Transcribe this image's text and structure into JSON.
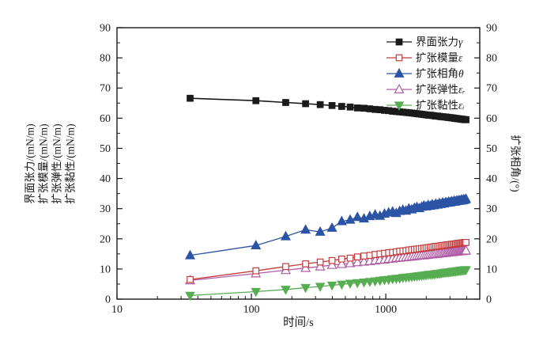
{
  "figure": {
    "background": "#ffffff",
    "x_axis_label": "时间/s",
    "left_axis_label_lines": [
      "界面张力/(mN/m)",
      "扩张模量/(mN/m)",
      "扩张弹性/(mN/m)",
      "扩张黏性/(mN/m)"
    ],
    "right_axis_label": "扩张相角/(°)"
  },
  "chart_data": {
    "type": "line",
    "x_scale": "log",
    "xlabel": "时间/s",
    "xlim": [
      10,
      5000
    ],
    "xticks": [
      10,
      100,
      1000
    ],
    "xtick_labels": [
      "10",
      "100",
      "1000"
    ],
    "ylim_left": [
      0,
      90
    ],
    "ylim_right": [
      0,
      90
    ],
    "yticks": [
      0,
      10,
      20,
      30,
      40,
      50,
      60,
      70,
      80,
      90
    ],
    "ytick_minor_step": 5,
    "ylabel_left_lines": [
      "界面张力/(mN/m)",
      "扩张模量/(mN/m)",
      "扩张弹性/(mN/m)",
      "扩张黏性/(mN/m)"
    ],
    "ylabel_right": "扩张相角/(°)",
    "grid": false,
    "legend_position": "top-right-inside",
    "axis_color": "#1a1a1a",
    "x": [
      35,
      108,
      180,
      253,
      325,
      398,
      470,
      543,
      615,
      688,
      760,
      833,
      905,
      978,
      1050,
      1123,
      1195,
      1268,
      1340,
      1413,
      1485,
      1558,
      1630,
      1703,
      1775,
      1848,
      1920,
      1993,
      2065,
      2138,
      2210,
      2283,
      2355,
      2428,
      2500,
      2573,
      2645,
      2718,
      2790,
      2863,
      2935,
      3008,
      3080,
      3153,
      3225,
      3298,
      3370,
      3443,
      3515,
      3588,
      3660,
      3733,
      3805,
      3878,
      3950
    ],
    "series": [
      {
        "name": "interfacial-tension",
        "label": "界面张力",
        "symbol": "γ",
        "axis": "left",
        "unit": "mN/m",
        "color": "#1a1a1a",
        "marker": "square",
        "fill": "solid",
        "values": [
          66.6,
          65.8,
          65.2,
          64.8,
          64.5,
          64.2,
          63.9,
          63.7,
          63.4,
          63.3,
          63.1,
          62.9,
          62.8,
          62.6,
          62.5,
          62.3,
          62.2,
          62.1,
          62.0,
          61.9,
          61.8,
          61.7,
          61.6,
          61.5,
          61.4,
          61.3,
          61.2,
          61.1,
          61.0,
          61.0,
          60.9,
          60.8,
          60.7,
          60.7,
          60.6,
          60.5,
          60.5,
          60.4,
          60.4,
          60.3,
          60.2,
          60.2,
          60.1,
          60.1,
          60.0,
          59.9,
          59.9,
          59.8,
          59.8,
          59.7,
          59.7,
          59.6,
          59.6,
          59.5,
          59.5
        ]
      },
      {
        "name": "dilational-modulus",
        "label": "扩张模量",
        "symbol": "ε",
        "axis": "left",
        "unit": "mN/m",
        "color": "#c43b3c",
        "marker": "square",
        "fill": "open",
        "values": [
          6.5,
          9.4,
          10.8,
          11.7,
          12.3,
          12.8,
          13.3,
          13.6,
          14.0,
          14.3,
          14.5,
          14.8,
          15.0,
          15.2,
          15.4,
          15.5,
          15.7,
          15.9,
          16.0,
          16.1,
          16.3,
          16.4,
          16.5,
          16.6,
          16.7,
          16.8,
          16.9,
          17.0,
          17.1,
          17.2,
          17.3,
          17.4,
          17.5,
          17.5,
          17.6,
          17.7,
          17.8,
          17.8,
          17.9,
          18.0,
          18.0,
          18.1,
          18.2,
          18.2,
          18.3,
          18.3,
          18.4,
          18.5,
          18.5,
          18.6,
          18.6,
          18.7,
          18.7,
          18.8,
          18.8
        ]
      },
      {
        "name": "phase-angle",
        "label": "扩张相角",
        "symbol": "θ",
        "axis": "right",
        "unit": "°",
        "color": "#2c54a4",
        "marker": "triangle-up",
        "fill": "solid",
        "values": [
          14.5,
          17.8,
          20.8,
          23.0,
          22.3,
          23.6,
          25.8,
          26.3,
          27.2,
          26.7,
          27.5,
          28.0,
          27.6,
          28.3,
          28.7,
          29.0,
          28.5,
          29.2,
          29.6,
          29.3,
          30.0,
          29.7,
          30.2,
          30.5,
          30.1,
          30.6,
          31.0,
          30.7,
          31.2,
          30.9,
          31.4,
          31.1,
          31.6,
          31.3,
          31.8,
          31.5,
          32.0,
          31.7,
          32.1,
          31.9,
          32.3,
          32.0,
          32.4,
          32.2,
          32.6,
          32.3,
          32.7,
          32.5,
          32.8,
          32.6,
          33.0,
          32.7,
          33.1,
          32.9,
          33.2
        ]
      },
      {
        "name": "dilational-elasticity",
        "label": "扩张弹性",
        "symbol": "εᵣ",
        "axis": "left",
        "unit": "mN/m",
        "color": "#af5da5",
        "marker": "triangle-up",
        "fill": "open",
        "values": [
          6.2,
          8.5,
          9.6,
          10.3,
          10.8,
          11.3,
          11.6,
          11.9,
          12.2,
          12.4,
          12.6,
          12.8,
          13.0,
          13.1,
          13.3,
          13.4,
          13.6,
          13.7,
          13.8,
          13.9,
          14.0,
          14.1,
          14.2,
          14.3,
          14.4,
          14.5,
          14.5,
          14.6,
          14.7,
          14.8,
          14.8,
          14.9,
          15.0,
          15.0,
          15.1,
          15.2,
          15.2,
          15.3,
          15.3,
          15.4,
          15.4,
          15.5,
          15.5,
          15.6,
          15.6,
          15.7,
          15.7,
          15.8,
          15.8,
          15.9,
          15.9,
          15.9,
          16.0,
          16.0,
          16.1
        ]
      },
      {
        "name": "dilational-viscosity",
        "label": "扩张黏性",
        "symbol": "εᵢ",
        "axis": "left",
        "unit": "mN/m",
        "color": "#57ad52",
        "marker": "triangle-down",
        "fill": "solid",
        "values": [
          1.2,
          2.5,
          3.2,
          3.8,
          4.2,
          4.6,
          4.9,
          5.2,
          5.4,
          5.6,
          5.8,
          6.0,
          6.2,
          6.4,
          6.5,
          6.7,
          6.8,
          6.9,
          7.1,
          7.2,
          7.3,
          7.4,
          7.5,
          7.6,
          7.7,
          7.8,
          7.9,
          8.0,
          8.1,
          8.2,
          8.2,
          8.3,
          8.4,
          8.5,
          8.5,
          8.6,
          8.7,
          8.8,
          8.8,
          8.9,
          8.9,
          9.0,
          9.1,
          9.1,
          9.2,
          9.2,
          9.3,
          9.4,
          9.4,
          9.5,
          9.5,
          9.6,
          9.6,
          9.7,
          9.7
        ]
      }
    ]
  }
}
